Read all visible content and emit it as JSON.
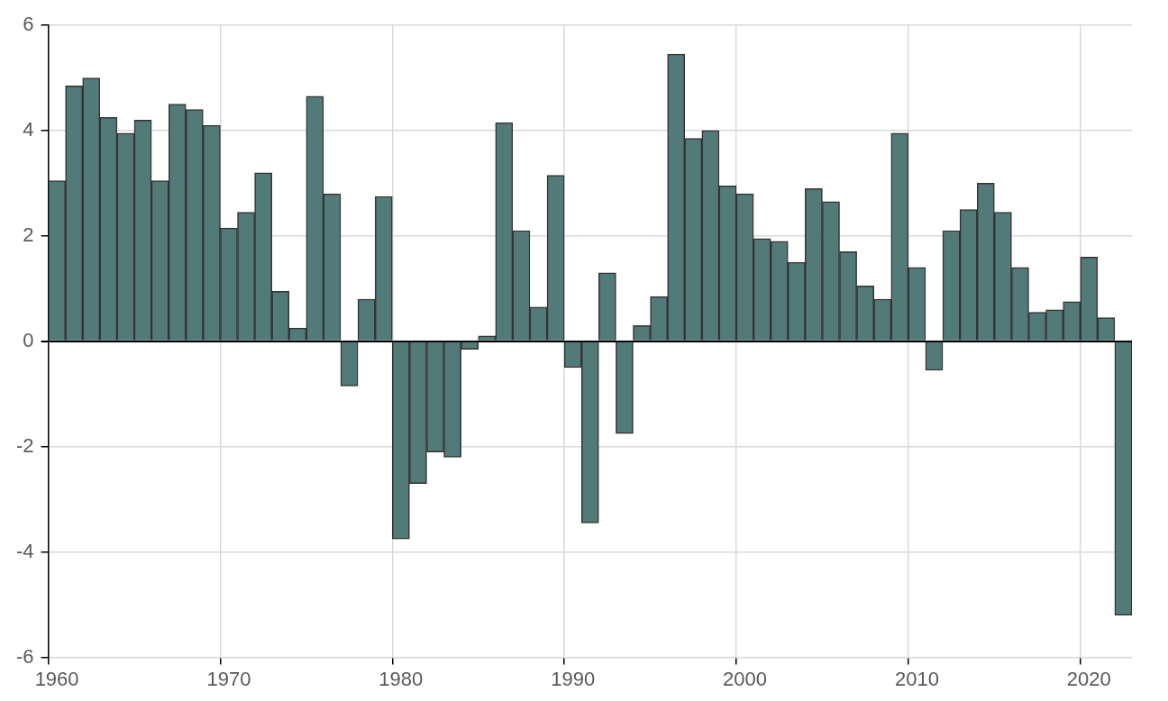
{
  "chart_data": {
    "type": "bar",
    "categories": [
      "1960",
      null,
      null,
      null,
      null,
      null,
      null,
      null,
      null,
      null,
      "1970",
      null,
      null,
      null,
      null,
      null,
      null,
      null,
      null,
      null,
      "1980",
      null,
      null,
      null,
      null,
      null,
      null,
      null,
      null,
      null,
      "1990",
      null,
      null,
      null,
      null,
      null,
      null,
      null,
      null,
      null,
      "2000",
      null,
      null,
      null,
      null,
      null,
      null,
      null,
      null,
      null,
      "2010",
      null,
      null,
      null,
      null,
      null,
      null,
      null,
      null,
      null,
      "2020",
      null,
      null
    ],
    "values": [
      3.05,
      4.85,
      5.0,
      4.25,
      3.95,
      4.2,
      3.05,
      4.5,
      4.4,
      4.1,
      2.15,
      2.45,
      3.2,
      0.95,
      0.25,
      4.65,
      2.8,
      -0.85,
      0.8,
      2.75,
      -3.75,
      -2.7,
      -2.1,
      -2.2,
      -0.15,
      0.1,
      4.15,
      2.1,
      0.65,
      3.15,
      -0.5,
      -3.45,
      1.3,
      -1.75,
      0.3,
      0.85,
      5.45,
      3.85,
      4.0,
      2.95,
      2.8,
      1.95,
      1.9,
      1.5,
      2.9,
      2.65,
      1.7,
      1.05,
      0.8,
      3.95,
      1.4,
      -0.55,
      2.1,
      2.5,
      3.0,
      2.45,
      1.4,
      0.55,
      0.6,
      0.75,
      1.6,
      0.45,
      -5.2
    ],
    "color": "#527a78",
    "ylim": [
      -6,
      6
    ],
    "yticks": [
      -6,
      -4,
      -2,
      0,
      2,
      4,
      6
    ],
    "grid": true
  }
}
